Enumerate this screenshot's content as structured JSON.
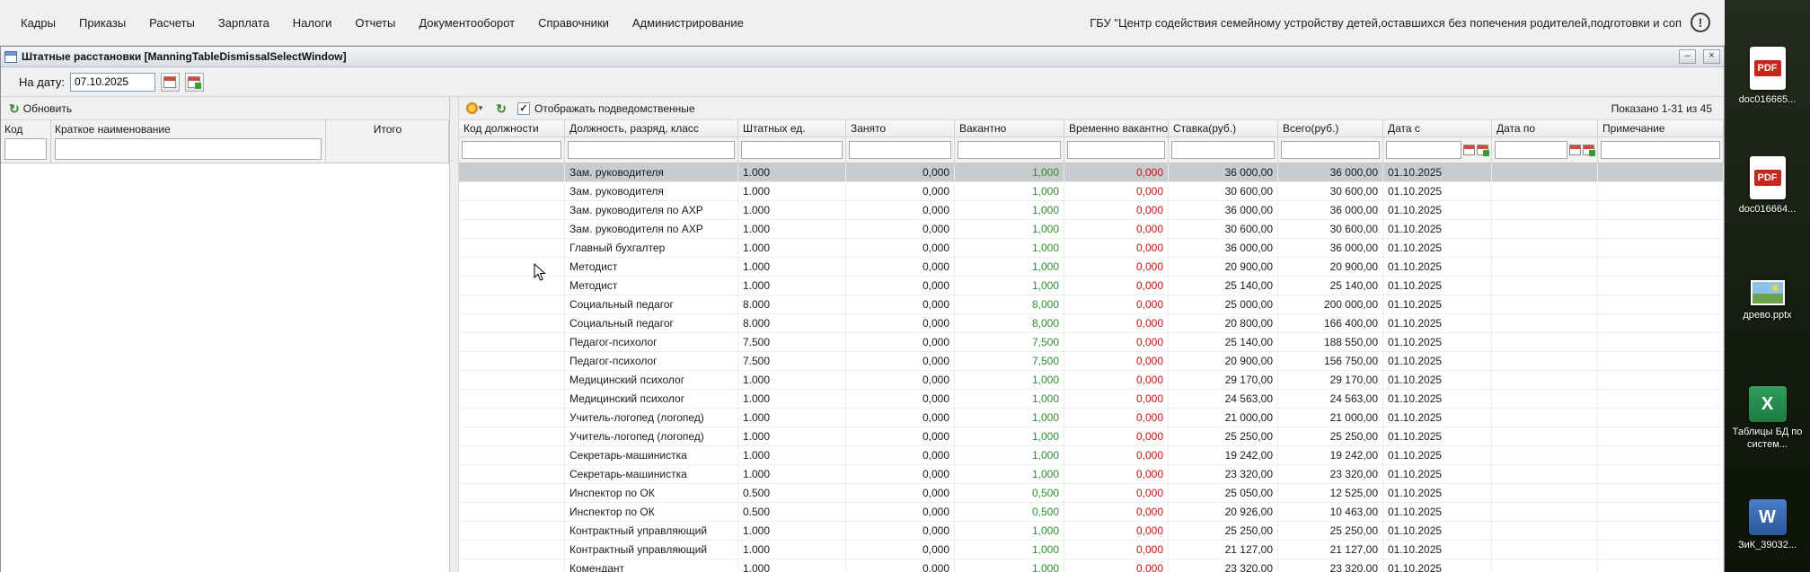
{
  "menu_bar": {
    "items": [
      "Кадры",
      "Приказы",
      "Расчеты",
      "Зарплата",
      "Налоги",
      "Отчеты",
      "Документооборот",
      "Справочники",
      "Администрирование"
    ],
    "org_name": "ГБУ \"Центр содействия семейному устройству детей,оставшихся без попечения родителей,подготовки и соп"
  },
  "window": {
    "title": "Штатные расстановки [ManningTableDismissalSelectWindow]"
  },
  "icons": {
    "alert": "!",
    "refresh": "↻",
    "dropdown": "▾",
    "check": "✓",
    "minimize": "‒",
    "close": "×"
  },
  "date_bar": {
    "label": "На дату:",
    "value": "07.10.2025"
  },
  "left_panel": {
    "refresh_label": "Обновить",
    "columns": [
      "Код",
      "Краткое наименование",
      "Итого"
    ]
  },
  "right_panel": {
    "checkbox_label": "Отображать подведомственные",
    "shown_label": "Показано 1-31 из 45",
    "columns": [
      "Код должности",
      "Должность, разряд, класс",
      "Штатных ед.",
      "Занято",
      "Вакантно",
      "Временно вакантно...",
      "Ставка(руб.)",
      "Всего(руб.)",
      "Дата с",
      "Дата по",
      "Примечание"
    ],
    "rows": [
      [
        "",
        "Зам. руководителя",
        "1.000",
        "0,000",
        "1,000",
        "0,000",
        "36 000,00",
        "36 000,00",
        "01.10.2025",
        "",
        ""
      ],
      [
        "",
        "Зам. руководителя",
        "1.000",
        "0,000",
        "1,000",
        "0,000",
        "30 600,00",
        "30 600,00",
        "01.10.2025",
        "",
        ""
      ],
      [
        "",
        "Зам. руководителя по АХР",
        "1.000",
        "0,000",
        "1,000",
        "0,000",
        "36 000,00",
        "36 000,00",
        "01.10.2025",
        "",
        ""
      ],
      [
        "",
        "Зам. руководителя по АХР",
        "1.000",
        "0,000",
        "1,000",
        "0,000",
        "30 600,00",
        "30 600,00",
        "01.10.2025",
        "",
        ""
      ],
      [
        "",
        "Главный бухгалтер",
        "1.000",
        "0,000",
        "1,000",
        "0,000",
        "36 000,00",
        "36 000,00",
        "01.10.2025",
        "",
        ""
      ],
      [
        "",
        "Методист",
        "1.000",
        "0,000",
        "1,000",
        "0,000",
        "20 900,00",
        "20 900,00",
        "01.10.2025",
        "",
        ""
      ],
      [
        "",
        "Методист",
        "1.000",
        "0,000",
        "1,000",
        "0,000",
        "25 140,00",
        "25 140,00",
        "01.10.2025",
        "",
        ""
      ],
      [
        "",
        "Социальный педагог",
        "8.000",
        "0,000",
        "8,000",
        "0,000",
        "25 000,00",
        "200 000,00",
        "01.10.2025",
        "",
        ""
      ],
      [
        "",
        "Социальный педагог",
        "8.000",
        "0,000",
        "8,000",
        "0,000",
        "20 800,00",
        "166 400,00",
        "01.10.2025",
        "",
        ""
      ],
      [
        "",
        "Педагог-психолог",
        "7.500",
        "0,000",
        "7,500",
        "0,000",
        "25 140,00",
        "188 550,00",
        "01.10.2025",
        "",
        ""
      ],
      [
        "",
        "Педагог-психолог",
        "7.500",
        "0,000",
        "7,500",
        "0,000",
        "20 900,00",
        "156 750,00",
        "01.10.2025",
        "",
        ""
      ],
      [
        "",
        "Медицинский психолог",
        "1.000",
        "0,000",
        "1,000",
        "0,000",
        "29 170,00",
        "29 170,00",
        "01.10.2025",
        "",
        ""
      ],
      [
        "",
        "Медицинский психолог",
        "1.000",
        "0,000",
        "1,000",
        "0,000",
        "24 563,00",
        "24 563,00",
        "01.10.2025",
        "",
        ""
      ],
      [
        "",
        "Учитель-логопед (логопед)",
        "1.000",
        "0,000",
        "1,000",
        "0,000",
        "21 000,00",
        "21 000,00",
        "01.10.2025",
        "",
        ""
      ],
      [
        "",
        "Учитель-логопед (логопед)",
        "1.000",
        "0,000",
        "1,000",
        "0,000",
        "25 250,00",
        "25 250,00",
        "01.10.2025",
        "",
        ""
      ],
      [
        "",
        "Секретарь-машинистка",
        "1.000",
        "0,000",
        "1,000",
        "0,000",
        "19 242,00",
        "19 242,00",
        "01.10.2025",
        "",
        ""
      ],
      [
        "",
        "Секретарь-машинистка",
        "1.000",
        "0,000",
        "1,000",
        "0,000",
        "23 320,00",
        "23 320,00",
        "01.10.2025",
        "",
        ""
      ],
      [
        "",
        "Инспектор по ОК",
        "0.500",
        "0,000",
        "0,500",
        "0,000",
        "25 050,00",
        "12 525,00",
        "01.10.2025",
        "",
        ""
      ],
      [
        "",
        "Инспектор по ОК",
        "0.500",
        "0,000",
        "0,500",
        "0,000",
        "20 926,00",
        "10 463,00",
        "01.10.2025",
        "",
        ""
      ],
      [
        "",
        "Контрактный управляющий",
        "1.000",
        "0,000",
        "1,000",
        "0,000",
        "25 250,00",
        "25 250,00",
        "01.10.2025",
        "",
        ""
      ],
      [
        "",
        "Контрактный управляющий",
        "1.000",
        "0,000",
        "1,000",
        "0,000",
        "21 127,00",
        "21 127,00",
        "01.10.2025",
        "",
        ""
      ],
      [
        "",
        "Комендант",
        "1.000",
        "0,000",
        "1,000",
        "0,000",
        "23 320,00",
        "23 320,00",
        "01.10.2025",
        "",
        ""
      ]
    ]
  },
  "desktop": {
    "icons": [
      {
        "type": "pdf",
        "badge": "PDF",
        "label": "doc016665..."
      },
      {
        "type": "pdf",
        "badge": "PDF",
        "label": "doc016664..."
      },
      {
        "type": "image",
        "badge": "",
        "label": "древо.pptx"
      },
      {
        "type": "excel",
        "badge": "X",
        "label": "Таблицы БД по систем..."
      },
      {
        "type": "word",
        "badge": "W",
        "label": "ЗиК_39032..."
      }
    ]
  }
}
